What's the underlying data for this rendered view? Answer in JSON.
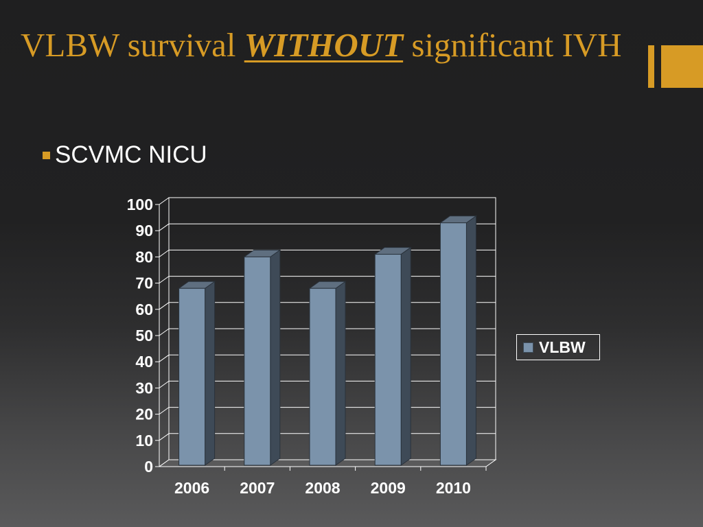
{
  "slide": {
    "title_before": "VLBW survival ",
    "title_emphasis": "WITHOUT",
    "title_after": " significant IVH",
    "bullet": "SCVMC NICU"
  },
  "colors": {
    "background": "#1f1f20",
    "title": "#d79b25",
    "accent": "#d79b25",
    "bar_front": "#7b93ab",
    "bar_side": "#3e4a57",
    "bar_top": "#5f6f80",
    "text": "#ffffff"
  },
  "chart_data": {
    "type": "bar",
    "style": "3d-column",
    "categories": [
      "2006",
      "2007",
      "2008",
      "2009",
      "2010"
    ],
    "series": [
      {
        "name": "VLBW",
        "values": [
          68,
          80,
          68,
          81,
          93
        ]
      }
    ],
    "ylim": [
      0,
      100
    ],
    "yticks": [
      "0",
      "10",
      "20",
      "30",
      "40",
      "50",
      "60",
      "70",
      "80",
      "90",
      "100"
    ],
    "grid": true,
    "legend": "right"
  }
}
